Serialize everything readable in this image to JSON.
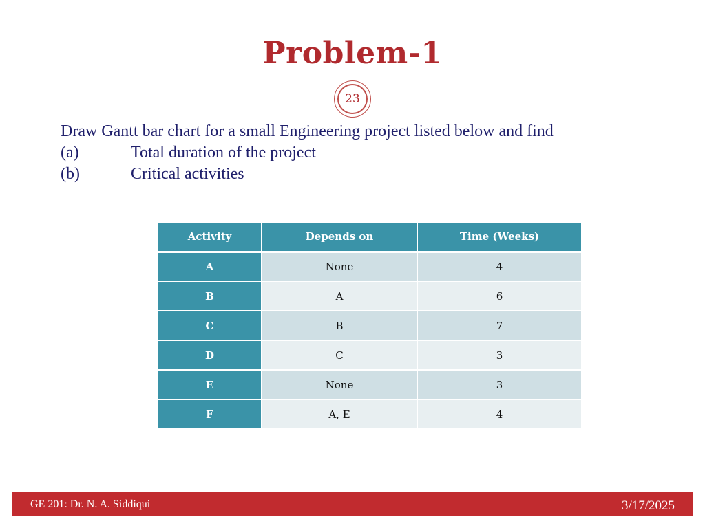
{
  "slide": {
    "title": "Problem-1",
    "page_number": "23",
    "intro": "Draw Gantt bar chart for a small Engineering project listed below and find",
    "items": [
      {
        "marker": "(a)",
        "text": "Total duration of the project"
      },
      {
        "marker": "(b)",
        "text": "Critical activities"
      }
    ]
  },
  "table": {
    "headers": [
      "Activity",
      "Depends on",
      "Time (Weeks)"
    ],
    "rows": [
      {
        "activity": "A",
        "depends_on": "None",
        "time": "4"
      },
      {
        "activity": "B",
        "depends_on": "A",
        "time": "6"
      },
      {
        "activity": "C",
        "depends_on": "B",
        "time": "7"
      },
      {
        "activity": "D",
        "depends_on": "C",
        "time": "3"
      },
      {
        "activity": "E",
        "depends_on": "None",
        "time": "3"
      },
      {
        "activity": "F",
        "depends_on": "A, E",
        "time": "4"
      }
    ]
  },
  "footer": {
    "course": "GE 201: Dr. N. A. Siddiqui",
    "date": "3/17/2025"
  },
  "colors": {
    "accent_red": "#c12b2f",
    "title_red": "#b02a2e",
    "table_teal": "#3a93a8",
    "body_text": "#1f1f6b"
  }
}
